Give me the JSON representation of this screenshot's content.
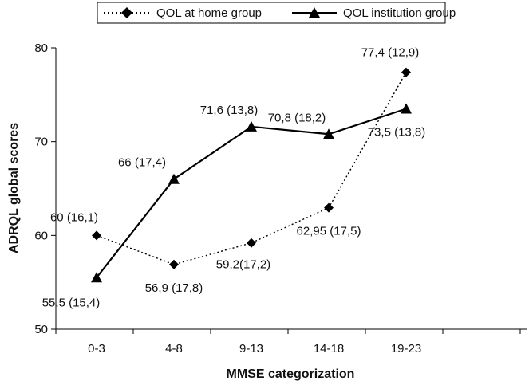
{
  "chart_data": {
    "type": "line",
    "title": "",
    "xlabel": "MMSE categorization",
    "ylabel": "ADRQL global scores",
    "categories": [
      "0-3",
      "4-8",
      "9-13",
      "14-18",
      "19-23"
    ],
    "ylim": [
      50,
      80
    ],
    "yticks": [
      50,
      60,
      70,
      80
    ],
    "grid": false,
    "legend_position": "top",
    "series": [
      {
        "name": "QOL at home group",
        "values": [
          60,
          56.9,
          59.2,
          62.95,
          77.4
        ],
        "point_labels": [
          "60 (16,1)",
          "56,9 (17,8)",
          "59,2(17,2)",
          "62,95 (17,5)",
          "77,4 (12,9)"
        ],
        "line_style": "dotted",
        "marker": "diamond",
        "color": "#000000"
      },
      {
        "name": "QOL institution group",
        "values": [
          55.5,
          66,
          71.6,
          70.8,
          73.5
        ],
        "point_labels": [
          "55,5 (15,4)",
          "66 (17,4)",
          "71,6 (13,8)",
          "70,8 (18,2)",
          "73,5 (13,8)"
        ],
        "line_style": "solid",
        "marker": "triangle",
        "color": "#000000"
      }
    ]
  }
}
